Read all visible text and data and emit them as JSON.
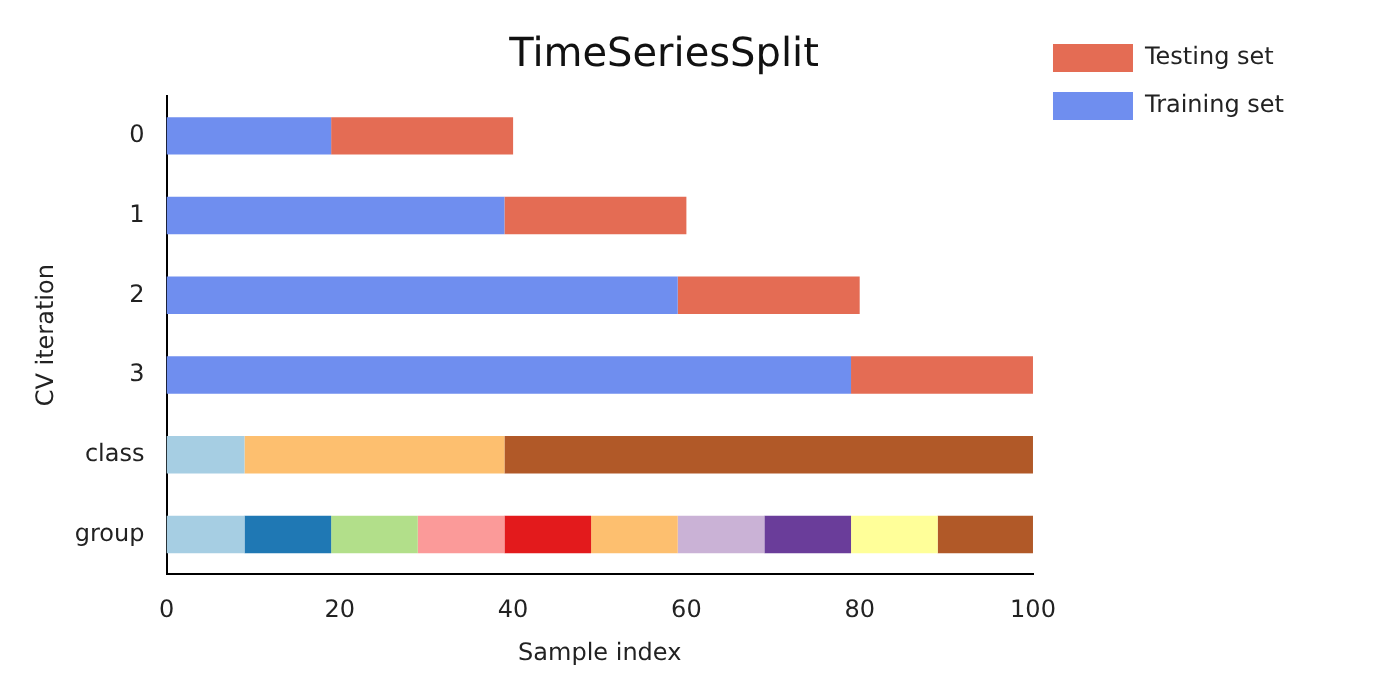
{
  "chart_data": {
    "type": "bar",
    "orientation": "horizontal",
    "stacked": true,
    "title": "TimeSeriesSplit",
    "xlabel": "Sample index",
    "ylabel": "CV iteration",
    "categories": [
      "0",
      "1",
      "2",
      "3",
      "class",
      "group"
    ],
    "xlim": [
      0,
      100
    ],
    "xticks": [
      0,
      20,
      40,
      60,
      80,
      100
    ],
    "grid": false,
    "legend": "top right",
    "series": [
      {
        "name": "Training set",
        "color": "#6f8eef",
        "values": [
          19,
          39,
          59,
          79,
          null,
          null
        ]
      },
      {
        "name": "Testing set",
        "color": "#e46c54",
        "values": [
          21,
          21,
          21,
          21,
          null,
          null
        ]
      },
      {
        "color": "#a6cee3",
        "values": [
          null,
          null,
          null,
          null,
          9,
          9
        ]
      },
      {
        "color": "#fdbf6f",
        "values": [
          null,
          null,
          null,
          null,
          30,
          null
        ]
      },
      {
        "color": "#b15928",
        "values": [
          null,
          null,
          null,
          null,
          61,
          null
        ]
      },
      {
        "color": "#1f78b4",
        "values": [
          null,
          null,
          null,
          null,
          null,
          10
        ]
      },
      {
        "color": "#b2df8a",
        "values": [
          null,
          null,
          null,
          null,
          null,
          10
        ]
      },
      {
        "color": "#fb9a99",
        "values": [
          null,
          null,
          null,
          null,
          null,
          10
        ]
      },
      {
        "color": "#e31a1c",
        "values": [
          null,
          null,
          null,
          null,
          null,
          10
        ]
      },
      {
        "color": "#fdbf6f",
        "values": [
          null,
          null,
          null,
          null,
          null,
          10
        ]
      },
      {
        "color": "#cab2d6",
        "values": [
          null,
          null,
          null,
          null,
          null,
          10
        ]
      },
      {
        "color": "#6a3d9a",
        "values": [
          null,
          null,
          null,
          null,
          null,
          10
        ]
      },
      {
        "color": "#ffff99",
        "values": [
          null,
          null,
          null,
          null,
          null,
          10
        ]
      },
      {
        "color": "#b15928",
        "values": [
          null,
          null,
          null,
          null,
          null,
          11
        ]
      }
    ]
  }
}
